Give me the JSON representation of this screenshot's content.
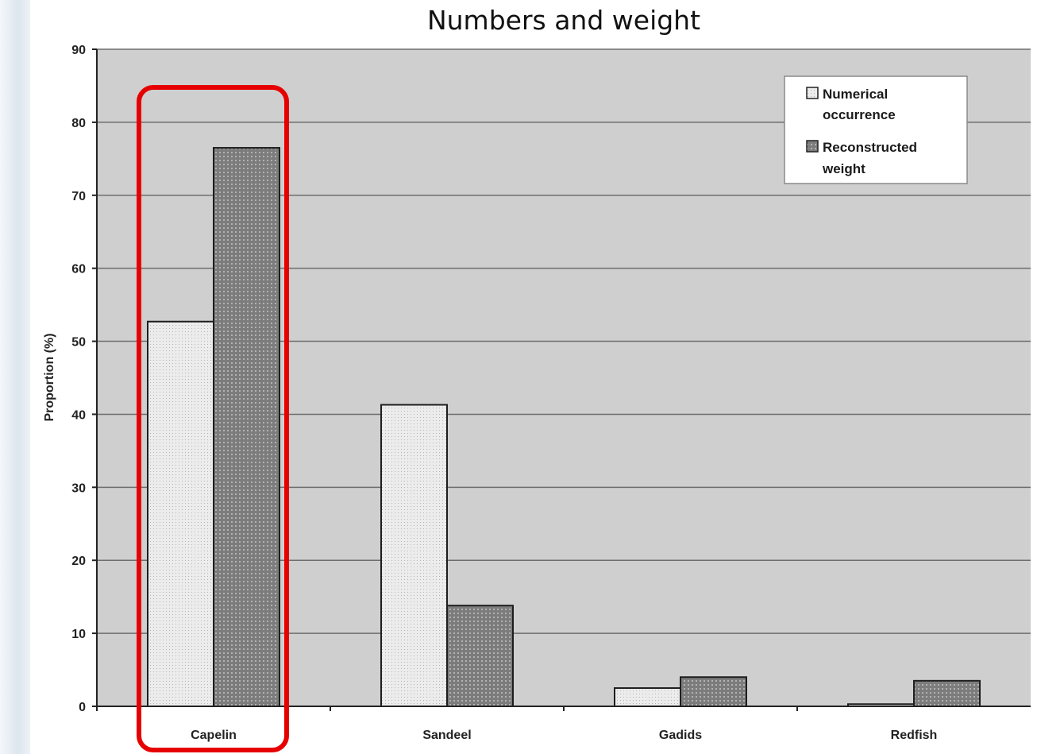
{
  "chart_data": {
    "type": "bar",
    "title": "Numbers and weight",
    "xlabel": "",
    "ylabel": "Proportion (%)",
    "ylim": [
      0,
      90
    ],
    "yticks": [
      0,
      10,
      20,
      30,
      40,
      50,
      60,
      70,
      80,
      90
    ],
    "categories": [
      "Capelin",
      "Sandeel",
      "Gadids",
      "Redfish"
    ],
    "series": [
      {
        "name": "Numerical occurrence",
        "legend_lines": [
          "Numerical",
          "occurrence"
        ],
        "values": [
          52.7,
          41.3,
          2.5,
          0.3
        ],
        "color": "#e6e6e6"
      },
      {
        "name": "Reconstructed weight",
        "legend_lines": [
          "Reconstructed",
          "weight"
        ],
        "values": [
          76.5,
          13.8,
          4.0,
          3.5
        ],
        "color": "#8c8c8c"
      }
    ],
    "grid": true,
    "legend_position": "top-right",
    "highlight": {
      "category": "Capelin",
      "color": "#e60000"
    }
  },
  "colors": {
    "plot_background": "#cfcfcf",
    "gridline": "#6e6e6e",
    "highlight": "#e60000"
  }
}
